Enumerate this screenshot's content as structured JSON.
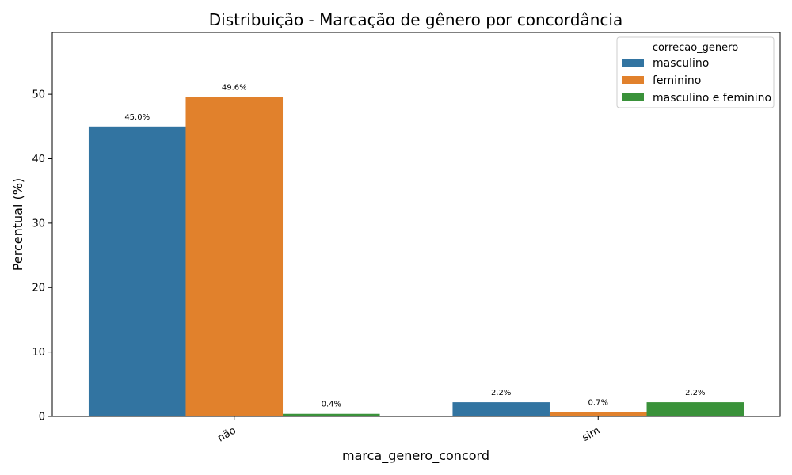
{
  "chart_data": {
    "type": "bar",
    "title": "Distribuição - Marcação de gênero por concordância",
    "xlabel": "marca_genero_concord",
    "ylabel": "Percentual (%)",
    "categories": [
      "não",
      "sim"
    ],
    "ylim": [
      0,
      59.6
    ],
    "yticks": [
      0,
      10,
      20,
      30,
      40,
      50
    ],
    "grid": false,
    "legend": {
      "title": "correcao_genero",
      "placement": "top-right"
    },
    "series": [
      {
        "name": "masculino",
        "color": "#3274a1",
        "values": [
          45.0,
          2.2
        ],
        "labels": [
          "45.0%",
          "2.2%"
        ]
      },
      {
        "name": "feminino",
        "color": "#e1812c",
        "values": [
          49.6,
          0.7
        ],
        "labels": [
          "49.6%",
          "0.7%"
        ]
      },
      {
        "name": "masculino e feminino",
        "color": "#3a923a",
        "values": [
          0.4,
          2.2
        ],
        "labels": [
          "0.4%",
          "2.2%"
        ]
      }
    ]
  }
}
